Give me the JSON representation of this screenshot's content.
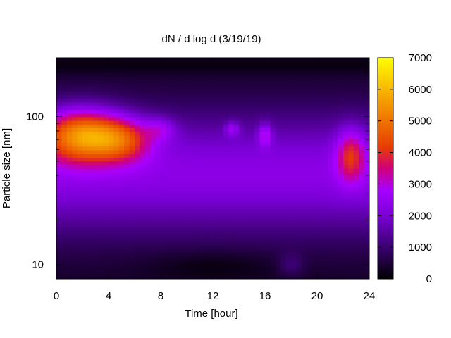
{
  "chart_data": {
    "type": "heatmap",
    "title": "dN / d log d (3/19/19)",
    "xlabel": "Time [hour]",
    "ylabel": "Particle size [nm]",
    "xlim": [
      0,
      24
    ],
    "xticks": [
      0,
      4,
      8,
      12,
      16,
      20,
      24
    ],
    "yscale": "log",
    "ylim": [
      8,
      250
    ],
    "yticks": [
      10,
      100
    ],
    "colorbar": {
      "range": [
        0,
        7000
      ],
      "ticks": [
        0,
        1000,
        2000,
        3000,
        4000,
        5000,
        6000,
        7000
      ],
      "colors": [
        "#000000",
        "#3a0070",
        "#7a00d6",
        "#a800ff",
        "#d0007a",
        "#e83f00",
        "#f59a00",
        "#ffff00"
      ]
    },
    "approx_features": [
      {
        "x": 2,
        "y_nm": 75,
        "value": 6000
      },
      {
        "x": 5,
        "y_nm": 70,
        "value": 5000
      },
      {
        "x": 8,
        "y_nm": 80,
        "value": 3500
      },
      {
        "x": 13.5,
        "y_nm": 80,
        "value": 3300
      },
      {
        "x": 16,
        "y_nm": 75,
        "value": 3500
      },
      {
        "x": 22.5,
        "y_nm": 55,
        "value": 3900
      },
      {
        "x": 12,
        "y_nm": 10,
        "value": 100
      },
      {
        "x": 18,
        "y_nm": 10,
        "value": 1200
      }
    ],
    "grid": false
  }
}
